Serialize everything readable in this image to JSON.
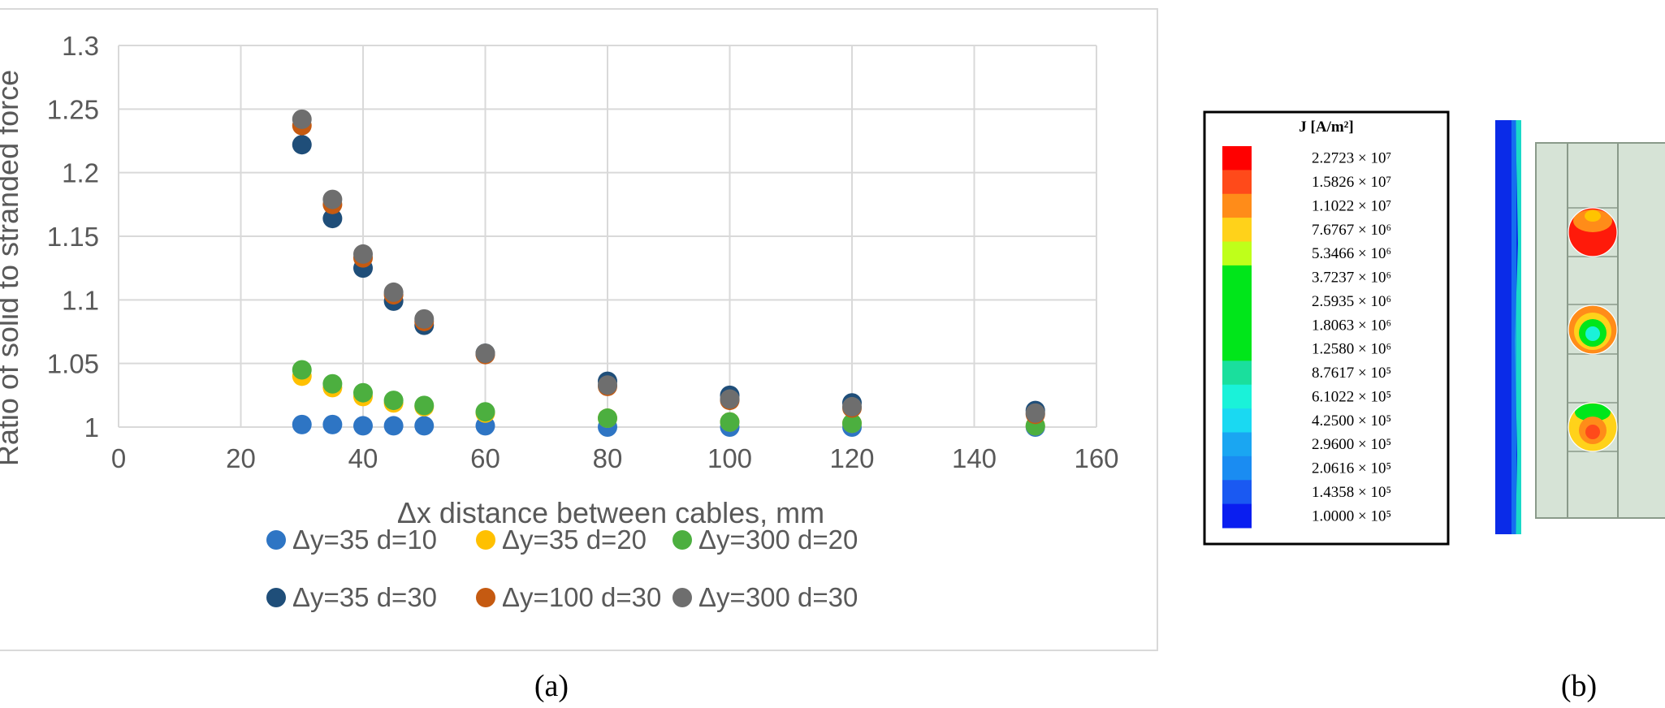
{
  "panel_labels": {
    "a": "(a)",
    "b": "(b)"
  },
  "chart_data": {
    "type": "scatter",
    "title": "",
    "xlabel": "Δx distance between cables, mm",
    "ylabel": "Ratio of solid to stranded force",
    "xlim": [
      0,
      160
    ],
    "ylim": [
      1,
      1.3
    ],
    "xticks": [
      "0",
      "20",
      "40",
      "60",
      "80",
      "100",
      "120",
      "140",
      "160"
    ],
    "yticks": [
      "1",
      "1.05",
      "1.1",
      "1.15",
      "1.2",
      "1.25",
      "1.3"
    ],
    "grid": true,
    "legend_position": "bottom",
    "series": [
      {
        "name": "Δy=35 d=10",
        "color": "#2e75c4",
        "x": [
          30,
          35,
          40,
          45,
          50,
          60,
          80,
          100,
          120,
          150
        ],
        "y": [
          1.002,
          1.002,
          1.001,
          1.001,
          1.001,
          1.001,
          1.0,
          1.0,
          1.0,
          1.0
        ]
      },
      {
        "name": "Δy=35 d=20",
        "color": "#ffc000",
        "x": [
          30,
          35,
          40,
          45,
          50,
          60,
          80,
          100,
          120,
          150
        ],
        "y": [
          1.04,
          1.031,
          1.024,
          1.019,
          1.016,
          1.011,
          1.007,
          1.004,
          1.003,
          1.001
        ]
      },
      {
        "name": "Δy=300 d=20",
        "color": "#4caf3f",
        "x": [
          30,
          35,
          40,
          45,
          50,
          60,
          80,
          100,
          120,
          150
        ],
        "y": [
          1.045,
          1.034,
          1.027,
          1.021,
          1.017,
          1.012,
          1.007,
          1.004,
          1.003,
          1.001
        ]
      },
      {
        "name": "Δy=35 d=30",
        "color": "#1f4e79",
        "x": [
          30,
          35,
          40,
          45,
          50,
          60,
          80,
          100,
          120,
          150
        ],
        "y": [
          1.222,
          1.164,
          1.125,
          1.099,
          1.08,
          1.058,
          1.036,
          1.025,
          1.019,
          1.013
        ]
      },
      {
        "name": "Δy=100 d=30",
        "color": "#c55a11",
        "x": [
          30,
          35,
          40,
          45,
          50,
          60,
          80,
          100,
          120,
          150
        ],
        "y": [
          1.237,
          1.175,
          1.133,
          1.104,
          1.083,
          1.057,
          1.032,
          1.021,
          1.015,
          1.01
        ]
      },
      {
        "name": "Δy=300 d=30",
        "color": "#6e6e6e",
        "x": [
          30,
          35,
          40,
          45,
          50,
          60,
          80,
          100,
          120,
          150
        ],
        "y": [
          1.242,
          1.179,
          1.136,
          1.106,
          1.085,
          1.058,
          1.033,
          1.022,
          1.016,
          1.011
        ]
      }
    ]
  },
  "colorbar": {
    "title": "J [A/m²]",
    "entries": [
      {
        "label": "2.2723 × 10⁷",
        "color": "#ff0000"
      },
      {
        "label": "1.5826 × 10⁷",
        "color": "#ff4a1a"
      },
      {
        "label": "1.1022 × 10⁷",
        "color": "#ff8c19"
      },
      {
        "label": "7.6767 × 10⁶",
        "color": "#ffd21a"
      },
      {
        "label": "5.3466 × 10⁶",
        "color": "#bfff1a"
      },
      {
        "label": "3.7237 × 10⁶",
        "color": "#00e61a"
      },
      {
        "label": "2.5935 × 10⁶",
        "color": "#00e61a"
      },
      {
        "label": "1.8063 × 10⁶",
        "color": "#00e61a"
      },
      {
        "label": "1.2580 × 10⁶",
        "color": "#00e61a"
      },
      {
        "label": "8.7617 × 10⁵",
        "color": "#1adf9d"
      },
      {
        "label": "6.1022 × 10⁵",
        "color": "#1af2d9"
      },
      {
        "label": "4.2500 × 10⁵",
        "color": "#1ad9f2"
      },
      {
        "label": "2.9600 × 10⁵",
        "color": "#1aa6f2"
      },
      {
        "label": "2.0616 × 10⁵",
        "color": "#1a8cf2"
      },
      {
        "label": "1.4358 × 10⁵",
        "color": "#1a59f2"
      },
      {
        "label": "1.0000 × 10⁵",
        "color": "#0a1ef0"
      }
    ]
  },
  "colors": {
    "grid": "#d9d9d9",
    "frame": "#d9d9d9",
    "text": "#595959",
    "cable_fill": "#d6e3d6",
    "cable_outline": "#8a9a8a",
    "plate_blue": "#0a2be8",
    "plate_cyan": "#1ad9c8"
  }
}
